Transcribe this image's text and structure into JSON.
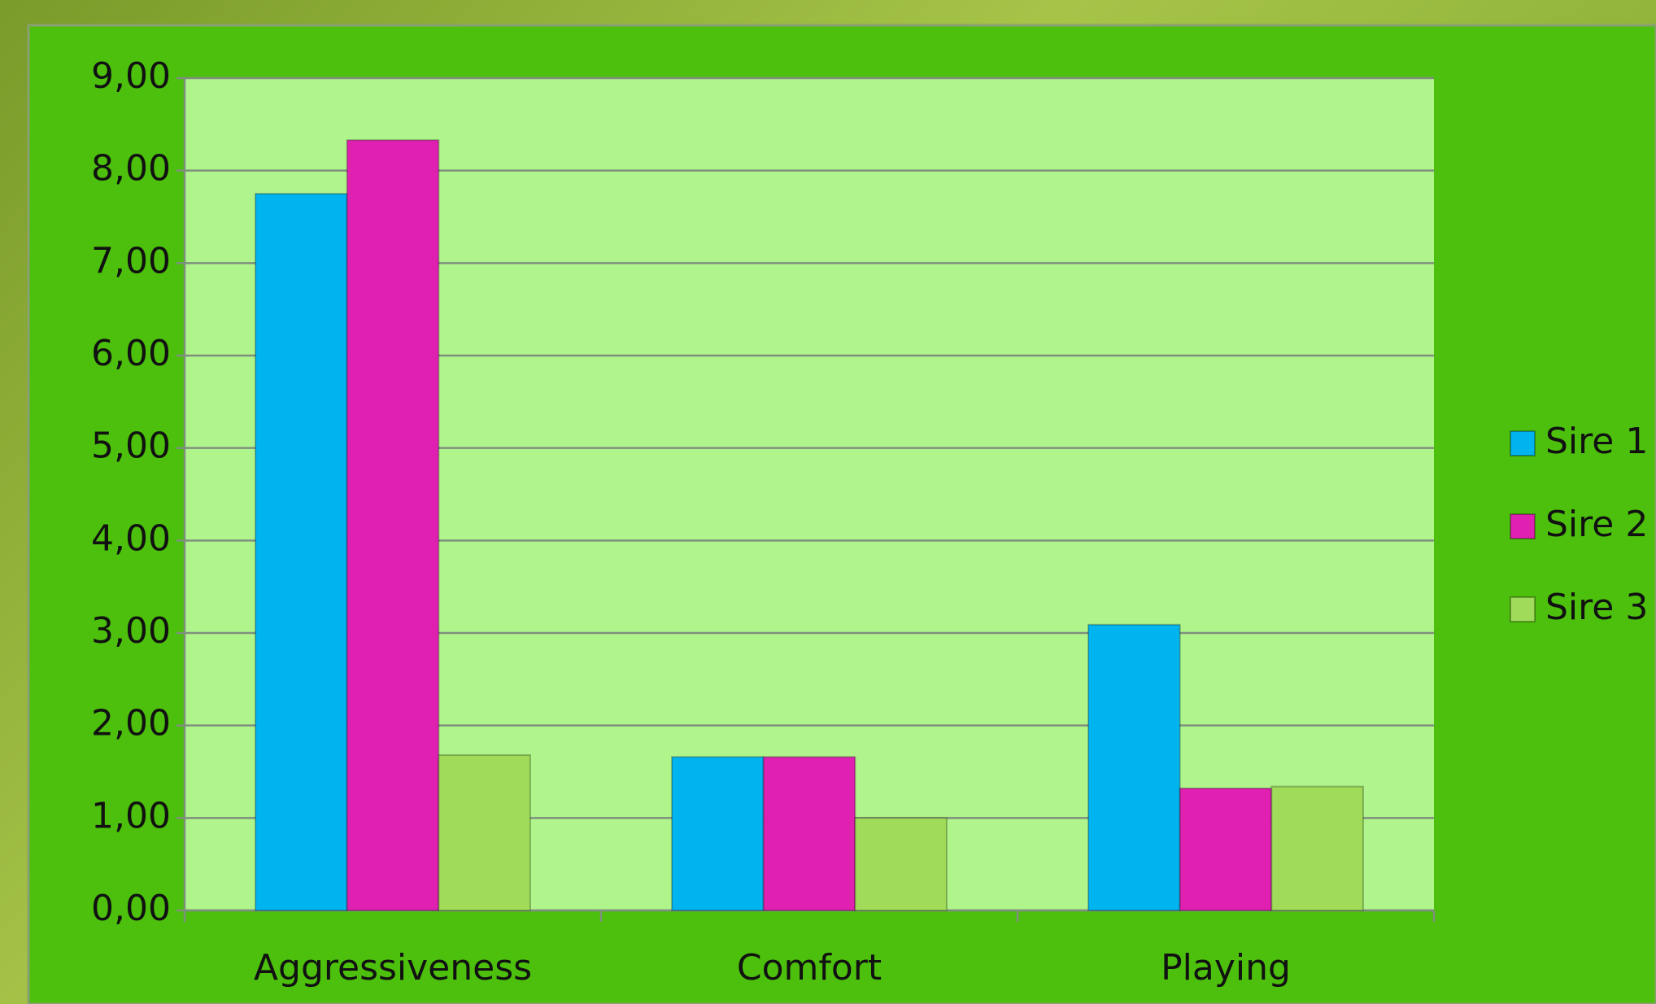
{
  "chart_data": {
    "type": "bar",
    "categories": [
      "Aggressiveness",
      "Comfort",
      "Playing"
    ],
    "series": [
      {
        "name": "Sire 1",
        "color": "#00b4f0",
        "values": [
          7.75,
          1.66,
          3.09
        ]
      },
      {
        "name": "Sire 2",
        "color": "#e020b0",
        "values": [
          8.33,
          1.66,
          1.32
        ]
      },
      {
        "name": "Sire 3",
        "color": "#a0dc5a",
        "values": [
          1.68,
          1.0,
          1.34
        ]
      }
    ],
    "ylim": [
      0,
      9
    ],
    "yticks": [
      {
        "value": 0,
        "label": "0,00"
      },
      {
        "value": 1,
        "label": "1,00"
      },
      {
        "value": 2,
        "label": "2,00"
      },
      {
        "value": 3,
        "label": "3,00"
      },
      {
        "value": 4,
        "label": "4,00"
      },
      {
        "value": 5,
        "label": "5,00"
      },
      {
        "value": 6,
        "label": "6,00"
      },
      {
        "value": 7,
        "label": "7,00"
      },
      {
        "value": 8,
        "label": "8,00"
      },
      {
        "value": 9,
        "label": "9,00"
      }
    ],
    "grid": true,
    "legend": "right"
  }
}
